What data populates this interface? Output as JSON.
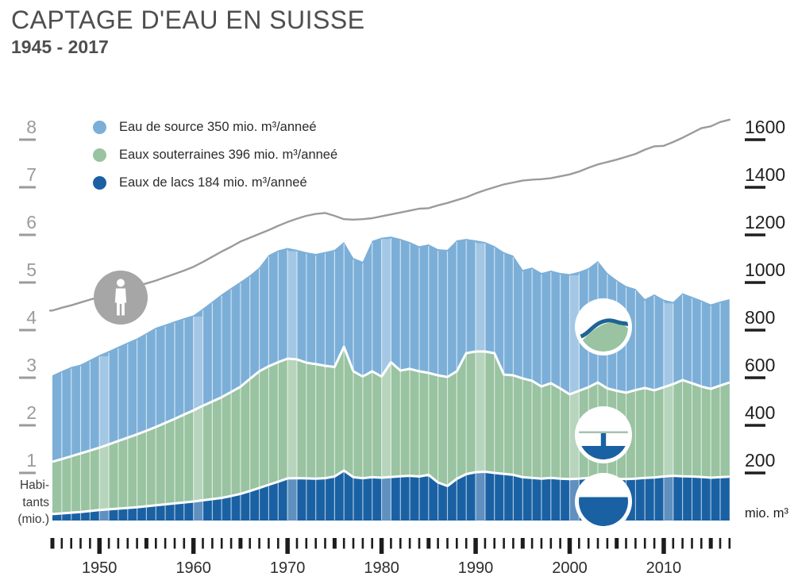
{
  "title": "CAPTAGE D'EAU EN SUISSE",
  "subtitle": "1945 - 2017",
  "legend": [
    {
      "label": "Eau de source 350 mio. m³/anneé",
      "color": "#7cafd8"
    },
    {
      "label": "Eaux souterraines 396 mio. m³/anneé",
      "color": "#99c3a1"
    },
    {
      "label": "Eaux de lacs 184 mio. m³/anneé",
      "color": "#1a61a4"
    }
  ],
  "axes": {
    "left": {
      "title_lines": [
        "Habi-",
        "tants",
        "(mio.)"
      ],
      "ticks": [
        1,
        2,
        3,
        4,
        5,
        6,
        7,
        8
      ],
      "range": [
        0,
        8
      ]
    },
    "right": {
      "title": "mio. m³",
      "ticks": [
        200,
        400,
        600,
        800,
        1000,
        1200,
        1400,
        1600
      ],
      "range": [
        0,
        1600
      ]
    },
    "x": {
      "decade_labels": [
        "1950",
        "1960",
        "1970",
        "1980",
        "1990",
        "2000",
        "2010"
      ]
    }
  },
  "colors": {
    "spring": "#7cafd8",
    "groundwater": "#99c3a1",
    "lakes": "#1a61a4",
    "population_line": "#9b9b9b",
    "person_circle": "#a6a6a6",
    "wave_blue": "#1e6394",
    "ground_line": "#a8c2ad",
    "tick_black": "#1c1c1c",
    "axis_left_gray": "#9b9b9b",
    "axis_right_black": "#1f1f1f",
    "title_gray": "#4e4e50"
  },
  "chart_data": {
    "type": "area",
    "stacked": true,
    "title": "Captage d'eau en Suisse 1945-2017",
    "x_years": {
      "start": 1945,
      "end": 2017
    },
    "ylabel_left": "Habitants (mio.)",
    "ylabel_right": "mio. m³",
    "ylim_left": [
      0,
      8
    ],
    "ylim_right": [
      0,
      1600
    ],
    "grid": false,
    "legend_position": "top-left",
    "series": [
      {
        "name": "Eaux de lacs",
        "total_2017": 184,
        "unit": "mio. m³/anneé",
        "color": "#1a61a4",
        "values": [
          27,
          30,
          33,
          36,
          40,
          44,
          47,
          50,
          53,
          56,
          60,
          64,
          68,
          72,
          76,
          80,
          85,
          90,
          95,
          103,
          112,
          124,
          137,
          150,
          163,
          177,
          178,
          177,
          176,
          178,
          185,
          210,
          182,
          178,
          182,
          180,
          183,
          186,
          188,
          185,
          192,
          160,
          145,
          175,
          195,
          203,
          205,
          200,
          196,
          192,
          182,
          179,
          176,
          179,
          176,
          174,
          176,
          179,
          182,
          179,
          176,
          174,
          176,
          179,
          181,
          185,
          188,
          186,
          185,
          183,
          180,
          182,
          184
        ]
      },
      {
        "name": "Eaux souterraines",
        "total_2017": 396,
        "unit": "mio. m³/anneé",
        "color": "#99c3a1",
        "values": [
          220,
          228,
          237,
          246,
          254,
          262,
          273,
          284,
          295,
          306,
          317,
          329,
          342,
          355,
          369,
          383,
          397,
          410,
          423,
          437,
          450,
          471,
          490,
          498,
          502,
          503,
          499,
          486,
          481,
          472,
          460,
          520,
          445,
          427,
          445,
          425,
          482,
          444,
          449,
          442,
          428,
          450,
          458,
          452,
          508,
          507,
          505,
          503,
          417,
          418,
          415,
          408,
          387,
          398,
          379,
          356,
          369,
          381,
          398,
          376,
          369,
          363,
          372,
          378,
          366,
          375,
          385,
          404,
          392,
          380,
          373,
          385,
          396
        ]
      },
      {
        "name": "Eau de source",
        "total_2017": 350,
        "unit": "mio. m³/anneé",
        "color": "#7cafd8",
        "values": [
          363,
          370,
          375,
          373,
          381,
          389,
          392,
          396,
          400,
          403,
          410,
          417,
          413,
          410,
          405,
          399,
          408,
          420,
          432,
          437,
          441,
          435,
          436,
          467,
          470,
          465,
          460,
          464,
          463,
          478,
          492,
          440,
          476,
          482,
          548,
          583,
          528,
          553,
          533,
          525,
          540,
          530,
          534,
          550,
          480,
          467,
          460,
          450,
          514,
          503,
          456,
          476,
          477,
          473,
          485,
          505,
          500,
          500,
          510,
          485,
          465,
          448,
          425,
          373,
          403,
          368,
          345,
          365,
          363,
          362,
          355,
          353,
          350
        ]
      }
    ],
    "line_series": {
      "name": "Habitants (mio.)",
      "color": "#9b9b9b",
      "values": [
        4.41,
        4.47,
        4.52,
        4.58,
        4.64,
        4.69,
        4.75,
        4.81,
        4.87,
        4.93,
        4.98,
        5.04,
        5.11,
        5.18,
        5.25,
        5.33,
        5.43,
        5.54,
        5.65,
        5.75,
        5.86,
        5.94,
        6.02,
        6.1,
        6.19,
        6.27,
        6.34,
        6.4,
        6.44,
        6.46,
        6.4,
        6.33,
        6.32,
        6.33,
        6.35,
        6.39,
        6.43,
        6.47,
        6.51,
        6.55,
        6.56,
        6.62,
        6.67,
        6.73,
        6.79,
        6.87,
        6.94,
        7.0,
        7.06,
        7.1,
        7.14,
        7.16,
        7.17,
        7.19,
        7.23,
        7.27,
        7.33,
        7.41,
        7.48,
        7.53,
        7.58,
        7.64,
        7.7,
        7.79,
        7.86,
        7.87,
        7.95,
        8.04,
        8.14,
        8.24,
        8.28,
        8.37,
        8.42
      ]
    },
    "highlighted_decade_columns": [
      1950,
      1960,
      1970,
      1980,
      1990,
      2000,
      2010
    ]
  }
}
